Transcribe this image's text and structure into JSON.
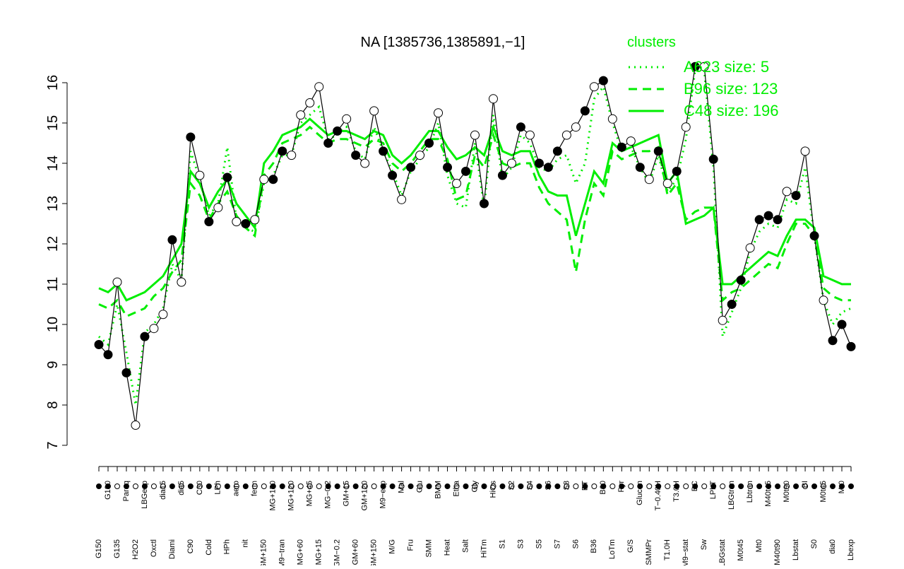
{
  "chart_data": {
    "type": "line",
    "title": "NA [1385736,1385891,−1]",
    "legend_title": "clusters",
    "categories": [
      "G150",
      "G180",
      "G135",
      "Paraq",
      "H2O2",
      "LBGexp",
      "Oxctl",
      "dia15",
      "Diami",
      "dia5",
      "C90",
      "C30",
      "Cold",
      "LPh",
      "HPh",
      "aero",
      "nit",
      "ferm",
      "GM+150",
      "MG+150",
      "M9−tran",
      "MG+120",
      "MG+60",
      "MG+45",
      "MG+15",
      "MG−0.2",
      "GM−0.2",
      "GM+15",
      "GM+60",
      "GM+120",
      "GM+150",
      "M9−exp",
      "M/G",
      "Mal",
      "Fru",
      "Glu",
      "SMM",
      "BMM",
      "Heat",
      "Etha",
      "Salt",
      "Gly",
      "HiTm",
      "HiOs",
      "S1",
      "S2",
      "S3",
      "S4",
      "S5",
      "S6",
      "S7",
      "S8",
      "S6",
      "BT",
      "B36",
      "B60",
      "LoTm",
      "Pyr",
      "G/S",
      "Glucon",
      "SMMPr",
      "T−0.40H",
      "T1.0H",
      "T3.0H",
      "M9−stat",
      "BC",
      "Sw",
      "LPhT",
      "LBGstat",
      "LBGtran",
      "M0t45",
      "Lbtran",
      "Mt0",
      "M40t45",
      "M40t90",
      "M0t90",
      "Lbstat",
      "BI",
      "S0",
      "M0t45",
      "dia0",
      "Mt0",
      "Lbexp"
    ],
    "values": [
      9.5,
      9.25,
      11.05,
      8.8,
      7.5,
      9.7,
      9.9,
      10.25,
      12.1,
      11.05,
      14.65,
      13.7,
      12.55,
      12.9,
      13.65,
      12.55,
      12.5,
      12.6,
      13.6,
      13.6,
      14.3,
      14.2,
      15.2,
      15.5,
      15.9,
      14.5,
      14.8,
      15.1,
      14.2,
      14.0,
      15.3,
      14.3,
      13.7,
      13.1,
      13.9,
      14.2,
      14.5,
      15.25,
      13.9,
      13.5,
      13.8,
      14.7,
      13.0,
      15.6,
      13.7,
      14.0,
      14.9,
      14.7,
      14.0,
      13.9,
      14.3,
      14.7,
      14.9,
      15.3,
      15.9,
      16.05,
      15.1,
      14.4,
      14.55,
      13.9,
      13.6,
      14.3,
      13.5,
      13.8,
      14.9,
      16.4,
      16.4,
      14.1,
      10.1,
      10.5,
      11.1,
      11.9,
      12.6,
      12.7,
      12.6,
      13.3,
      13.2,
      14.3,
      12.2,
      10.6,
      9.6,
      10.0,
      9.45
    ],
    "filled": [
      1,
      1,
      0,
      1,
      0,
      1,
      0,
      0,
      1,
      0,
      1,
      0,
      1,
      0,
      1,
      0,
      1,
      0,
      0,
      1,
      1,
      0,
      0,
      0,
      0,
      1,
      1,
      0,
      1,
      0,
      0,
      1,
      1,
      0,
      1,
      0,
      1,
      0,
      1,
      0,
      1,
      0,
      1,
      0,
      1,
      0,
      1,
      0,
      1,
      1,
      1,
      0,
      0,
      1,
      0,
      1,
      0,
      1,
      0,
      1,
      0,
      1,
      0,
      1,
      0,
      1,
      0,
      1,
      0,
      1,
      1,
      0,
      1,
      1,
      1,
      0,
      1,
      0,
      1,
      0,
      1,
      1,
      1
    ],
    "color": "#000000",
    "series": [
      {
        "name": "A623 size: 5",
        "color": "#00ee00",
        "dash": "dotted",
        "values": [
          9.7,
          9.5,
          10.5,
          9.3,
          8.0,
          9.8,
          10.0,
          10.4,
          11.5,
          11.1,
          14.3,
          13.6,
          12.7,
          13.0,
          14.4,
          12.6,
          12.4,
          12.3,
          13.5,
          13.7,
          14.2,
          14.2,
          15.0,
          15.2,
          15.4,
          14.6,
          14.7,
          14.9,
          14.3,
          14.1,
          14.9,
          14.3,
          13.8,
          13.2,
          13.8,
          14.1,
          14.4,
          15.0,
          13.7,
          13.0,
          12.9,
          14.5,
          12.9,
          15.2,
          13.6,
          13.9,
          14.7,
          14.5,
          13.9,
          13.8,
          14.1,
          14.2,
          13.5,
          14.0,
          15.6,
          15.9,
          15.0,
          14.3,
          14.4,
          13.9,
          13.5,
          14.2,
          13.3,
          13.6,
          14.6,
          16.3,
          16.3,
          13.9,
          9.7,
          10.3,
          10.9,
          11.8,
          12.3,
          12.5,
          12.4,
          13.1,
          13.0,
          13.9,
          12.2,
          10.6,
          10.0,
          10.3,
          10.4
        ]
      },
      {
        "name": "B96 size: 123",
        "color": "#00ee00",
        "dash": "dashed",
        "values": [
          10.5,
          10.4,
          10.6,
          10.2,
          10.3,
          10.4,
          10.7,
          10.9,
          11.3,
          11.6,
          13.5,
          13.2,
          12.6,
          13.0,
          13.3,
          12.7,
          12.4,
          12.2,
          13.7,
          14.0,
          14.5,
          14.6,
          14.7,
          14.9,
          14.7,
          14.5,
          14.6,
          14.6,
          14.5,
          14.4,
          14.6,
          14.5,
          14.0,
          13.8,
          14.0,
          14.3,
          14.6,
          14.6,
          14.1,
          13.1,
          13.2,
          14.2,
          13.9,
          14.7,
          14.0,
          13.9,
          14.0,
          14.0,
          13.4,
          13.0,
          12.8,
          12.6,
          11.3,
          12.6,
          13.5,
          13.2,
          14.3,
          14.1,
          14.2,
          14.3,
          14.3,
          14.4,
          13.2,
          13.5,
          12.6,
          12.8,
          12.9,
          12.9,
          10.6,
          10.8,
          10.9,
          11.1,
          11.3,
          11.5,
          11.4,
          12.0,
          12.5,
          12.5,
          12.2,
          10.9,
          10.7,
          10.6,
          10.6
        ]
      },
      {
        "name": "C48 size: 196",
        "color": "#00ee00",
        "dash": "solid",
        "values": [
          10.9,
          10.8,
          11.0,
          10.6,
          10.7,
          10.8,
          11.0,
          11.2,
          11.6,
          12.0,
          13.8,
          13.5,
          12.9,
          13.3,
          13.6,
          13.0,
          12.7,
          12.4,
          14.0,
          14.3,
          14.7,
          14.8,
          14.9,
          15.1,
          14.9,
          14.7,
          14.8,
          14.8,
          14.7,
          14.6,
          14.8,
          14.7,
          14.2,
          14.0,
          14.2,
          14.5,
          14.8,
          14.8,
          14.4,
          14.1,
          14.2,
          14.4,
          14.2,
          14.9,
          14.3,
          14.2,
          14.3,
          14.3,
          13.7,
          13.3,
          13.2,
          13.2,
          12.2,
          13.0,
          13.8,
          13.5,
          14.5,
          14.3,
          14.4,
          14.5,
          14.6,
          14.7,
          13.5,
          13.8,
          12.5,
          12.6,
          12.7,
          12.9,
          11.0,
          11.0,
          11.2,
          11.4,
          11.6,
          11.8,
          11.7,
          12.2,
          12.6,
          12.6,
          12.4,
          11.2,
          11.1,
          11.0,
          11.0
        ]
      }
    ],
    "ylim": [
      7,
      16
    ],
    "yticks": [
      7,
      8,
      9,
      10,
      11,
      12,
      13,
      14,
      15,
      16
    ],
    "grid": false
  }
}
